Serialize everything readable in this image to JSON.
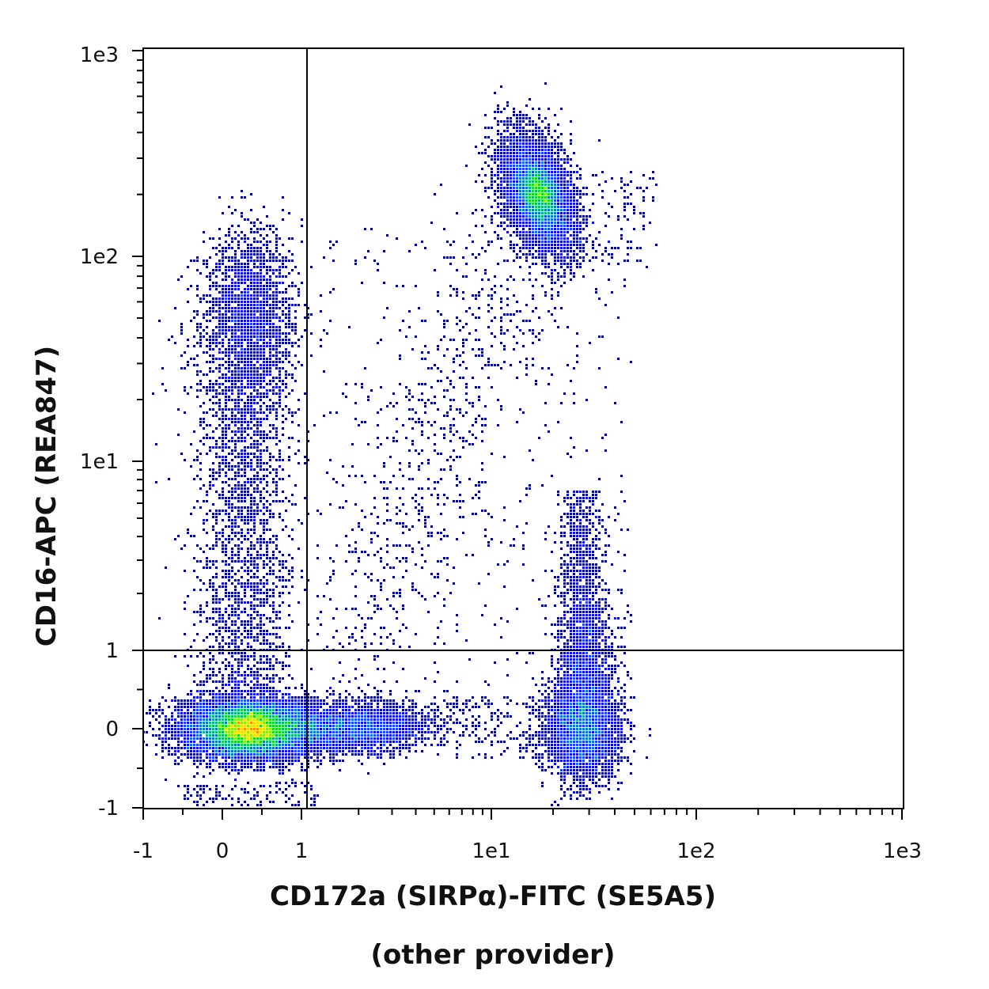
{
  "chart_data": {
    "type": "scatter",
    "subtype": "flow-cytometry density dot plot",
    "xlabel": "CD172a (SIRPα)-FITC (SE5A5)",
    "xlabel_note": "(other provider)",
    "ylabel": "CD16-APC (REA847)",
    "x_scale": "biexponential (linear near 0, log above 1)",
    "y_scale": "biexponential (linear near 0, log above 1)",
    "xlim": [
      -1,
      1000
    ],
    "ylim": [
      -1,
      1000
    ],
    "x_ticks": [
      "-1",
      "0",
      "1",
      "1e1",
      "1e2",
      "1e3"
    ],
    "y_ticks": [
      "-1",
      "0",
      "1",
      "1e1",
      "1e2",
      "1e3"
    ],
    "quadrant_gate": {
      "x": 1.07,
      "y": 1.0
    },
    "populations": [
      {
        "x_center": 0.35,
        "y_center": 0.0,
        "peak_color": "#00e000",
        "note": "CD172a- CD16- (dense)"
      },
      {
        "x_center": 1.9,
        "y_center": 0.0,
        "peak_color": "#2a2ad8",
        "note": "CD172a low CD16-"
      },
      {
        "x_center": 0.35,
        "y_center": 50,
        "peak_color": "#1e1ed6",
        "note": "CD172a- CD16+"
      },
      {
        "x_center": 17,
        "y_center": 200,
        "peak_color": "#ff2200",
        "note": "CD172a+ CD16+"
      },
      {
        "x_center": 28,
        "y_center": 0.0,
        "peak_color": "#1a6aa0",
        "note": "CD172a+ CD16- (with upward tail)"
      }
    ],
    "grid": false,
    "legend": "none"
  }
}
